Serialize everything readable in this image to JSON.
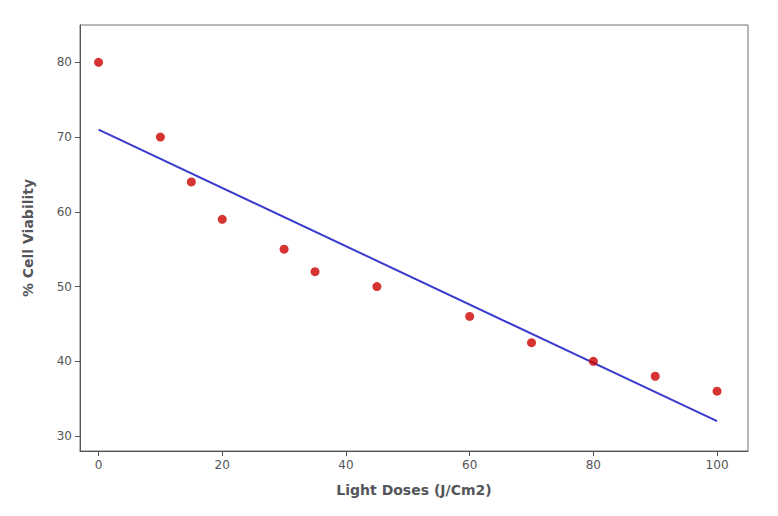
{
  "chart_data": {
    "type": "scatter",
    "xlabel": "Light Doses (J/Cm2)",
    "ylabel": "% Cell Viability",
    "series": [
      {
        "type": "line",
        "color": "#3a3acc",
        "x": [
          0,
          100
        ],
        "values": [
          71,
          32
        ]
      },
      {
        "type": "scatter",
        "color": "#cc0000",
        "x": [
          0,
          10,
          15,
          20,
          30,
          35,
          45,
          60,
          70,
          80,
          90,
          100
        ],
        "values": [
          80,
          70,
          64,
          59,
          55,
          52,
          50,
          46,
          42.5,
          40,
          38,
          36
        ]
      }
    ],
    "xlim": [
      -3,
      105
    ],
    "ylim": [
      28,
      85
    ],
    "xticks": [
      0,
      20,
      40,
      60,
      80,
      100
    ],
    "yticks": [
      30,
      40,
      50,
      60,
      70,
      80
    ],
    "grid": false
  }
}
